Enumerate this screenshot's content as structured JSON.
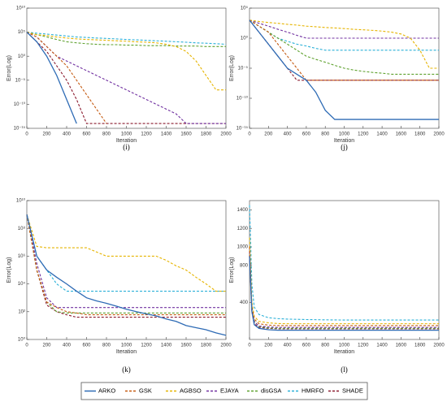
{
  "chart_data": [
    {
      "type": "line",
      "label": "(i)",
      "y_label": "Error(Log)",
      "x_label": "Iteration",
      "yscale": "log",
      "x": [
        0,
        100,
        200,
        300,
        400,
        500,
        600,
        700,
        800,
        900,
        1000,
        1100,
        1200,
        1300,
        1400,
        1500,
        1600,
        1700,
        1800,
        1900,
        2000
      ],
      "xlim": [
        0,
        2000
      ],
      "xticks": [
        0,
        200,
        400,
        600,
        800,
        1000,
        1200,
        1400,
        1600,
        1800,
        2000
      ],
      "ylim": [
        1e-15,
        10000000000.0
      ],
      "yticks": [
        {
          "value": 1e-15,
          "label": "10⁻¹⁵"
        },
        {
          "value": 1e-10,
          "label": "10⁻¹⁰"
        },
        {
          "value": 1e-05,
          "label": "10⁻⁵"
        },
        {
          "value": 1,
          "label": "10⁰"
        },
        {
          "value": 100000.0,
          "label": "10⁵"
        },
        {
          "value": 10000000000.0,
          "label": "10¹⁰"
        }
      ],
      "series": [
        {
          "name": "ARKO",
          "color": "#2e6bb5",
          "style": "solid",
          "values": [
            100000.0,
            1000.0,
            1,
            0.0001,
            1e-09,
            1e-14,
            null,
            null,
            null,
            null,
            null,
            null,
            null,
            null,
            null,
            null,
            null,
            null,
            null,
            null,
            null
          ]
        },
        {
          "name": "GSK",
          "color": "#c55a11",
          "style": "dashed",
          "values": [
            100000.0,
            10000.0,
            100.0,
            1,
            0.01,
            1e-05,
            1e-08,
            1e-11,
            1e-14,
            null,
            null,
            null,
            null,
            null,
            null,
            null,
            null,
            null,
            null,
            null,
            null
          ]
        },
        {
          "name": "AGBSO",
          "color": "#e6b400",
          "style": "dashed",
          "values": [
            100000.0,
            30000.0,
            20000.0,
            10000.0,
            6000.0,
            4000.0,
            3000.0,
            2500.0,
            2000.0,
            1600.0,
            1300.0,
            1000.0,
            800.0,
            600.0,
            300.0,
            100.0,
            10.0,
            0.1,
            0.0001,
            1e-07,
            1e-07
          ]
        },
        {
          "name": "EJAYA",
          "color": "#7030a0",
          "style": "dashed",
          "values": [
            100000.0,
            10000.0,
            100.0,
            1,
            0.1,
            0.01,
            0.001,
            0.0001,
            1e-05,
            1e-06,
            1e-07,
            1e-08,
            1e-09,
            1e-10,
            1e-11,
            1e-12,
            1e-14,
            1e-14,
            1e-14,
            1e-14,
            1e-14
          ]
        },
        {
          "name": "disGSA",
          "color": "#5ea12e",
          "style": "dashed",
          "values": [
            100000.0,
            30000.0,
            10000.0,
            3000.0,
            1000.0,
            600.0,
            400.0,
            300.0,
            250.0,
            250.0,
            200.0,
            200.0,
            160.0,
            160.0,
            160.0,
            130.0,
            130.0,
            130.0,
            100.0,
            100.0,
            100.0
          ]
        },
        {
          "name": "HMRFO",
          "color": "#2ab0d8",
          "style": "dashed",
          "values": [
            100000.0,
            60000.0,
            40000.0,
            25000.0,
            16000.0,
            10000.0,
            8000.0,
            6000.0,
            5000.0,
            4000.0,
            3000.0,
            2500.0,
            2000.0,
            1600.0,
            1300.0,
            1000.0,
            800.0,
            600.0,
            500.0,
            400.0,
            300.0
          ]
        },
        {
          "name": "SHADE",
          "color": "#8b1a2e",
          "style": "dashed",
          "values": [
            100000.0,
            1000.0,
            10.0,
            0.01,
            1e-05,
            1e-09,
            1e-14,
            1e-14,
            1e-14,
            1e-14,
            1e-14,
            1e-14,
            1e-14,
            1e-14,
            1e-14,
            1e-14,
            1e-14,
            1e-14,
            1e-14,
            1e-14,
            1e-14
          ]
        }
      ]
    },
    {
      "type": "line",
      "label": "(j)",
      "y_label": "Error(Log)",
      "x_label": "Iteration",
      "yscale": "log",
      "x": [
        0,
        100,
        200,
        300,
        400,
        500,
        600,
        700,
        800,
        900,
        1000,
        1100,
        1200,
        1300,
        1400,
        1500,
        1600,
        1700,
        1800,
        1900,
        2000
      ],
      "xlim": [
        0,
        2000
      ],
      "xticks": [
        0,
        200,
        400,
        600,
        800,
        1000,
        1200,
        1400,
        1600,
        1800,
        2000
      ],
      "ylim": [
        1e-15,
        100000.0
      ],
      "yticks": [
        {
          "value": 1e-15,
          "label": "10⁻¹⁵"
        },
        {
          "value": 1e-10,
          "label": "10⁻¹⁰"
        },
        {
          "value": 1e-05,
          "label": "10⁻⁵"
        },
        {
          "value": 1,
          "label": "10⁰"
        },
        {
          "value": 100000.0,
          "label": "10⁵"
        }
      ],
      "series": [
        {
          "name": "ARKO",
          "color": "#2e6bb5",
          "style": "solid",
          "values": [
            1000.0,
            10.0,
            0.1,
            0.001,
            1e-05,
            1e-06,
            1e-07,
            1e-09,
            1e-12,
            3e-14,
            3e-14,
            3e-14,
            3e-14,
            3e-14,
            3e-14,
            3e-14,
            3e-14,
            3e-14,
            3e-14,
            3e-14,
            3e-14
          ]
        },
        {
          "name": "GSK",
          "color": "#c55a11",
          "style": "dashed",
          "values": [
            1000.0,
            100.0,
            10.0,
            0.1,
            0.001,
            1e-05,
            1e-07,
            1e-07,
            1e-07,
            1e-07,
            1e-07,
            1e-07,
            1e-07,
            1e-07,
            1e-07,
            1e-07,
            1e-07,
            1e-07,
            1e-07,
            1e-07,
            1e-07
          ]
        },
        {
          "name": "AGBSO",
          "color": "#e6b400",
          "style": "dashed",
          "values": [
            1000.0,
            600.0,
            400.0,
            300.0,
            200.0,
            150.0,
            100.0,
            80.0,
            60.0,
            50.0,
            40.0,
            30.0,
            25.0,
            20.0,
            15.0,
            10.0,
            5,
            1,
            0.01,
            1e-05,
            1e-05
          ]
        },
        {
          "name": "EJAYA",
          "color": "#7030a0",
          "style": "dashed",
          "values": [
            1000.0,
            300.0,
            100.0,
            30.0,
            10.0,
            3,
            1,
            1,
            1,
            1,
            1,
            1,
            1,
            1,
            1,
            1,
            1,
            1,
            1,
            1,
            1
          ]
        },
        {
          "name": "disGSA",
          "color": "#5ea12e",
          "style": "dashed",
          "values": [
            1000.0,
            100.0,
            10.0,
            1,
            0.1,
            0.01,
            0.001,
            0.0003,
            0.0001,
            3e-05,
            1e-05,
            5e-06,
            3e-06,
            2e-06,
            1.5e-06,
            1e-06,
            1e-06,
            1e-06,
            1e-06,
            1e-06,
            1e-06
          ]
        },
        {
          "name": "HMRFO",
          "color": "#2ab0d8",
          "style": "dashed",
          "values": [
            1000.0,
            100.0,
            10.0,
            1,
            0.3,
            0.1,
            0.05,
            0.02,
            0.01,
            0.01,
            0.01,
            0.01,
            0.01,
            0.01,
            0.01,
            0.01,
            0.01,
            0.01,
            0.01,
            0.01,
            0.01
          ]
        },
        {
          "name": "SHADE",
          "color": "#8b1a2e",
          "style": "dashed",
          "values": [
            1000.0,
            10.0,
            0.1,
            0.001,
            1e-05,
            1e-07,
            1e-07,
            1e-07,
            1e-07,
            1e-07,
            1e-07,
            1e-07,
            1e-07,
            1e-07,
            1e-07,
            1e-07,
            1e-07,
            1e-07,
            1e-07,
            1e-07,
            1e-07
          ]
        }
      ]
    },
    {
      "type": "line",
      "label": "(k)",
      "y_label": "Error(Log)",
      "x_label": "Iteration",
      "yscale": "log",
      "x": [
        0,
        100,
        200,
        300,
        400,
        500,
        600,
        700,
        800,
        900,
        1000,
        1100,
        1200,
        1300,
        1400,
        1500,
        1600,
        1700,
        1800,
        1900,
        2000
      ],
      "xlim": [
        0,
        2000
      ],
      "xticks": [
        0,
        200,
        400,
        600,
        800,
        1000,
        1200,
        1400,
        1600,
        1800,
        2000
      ],
      "ylim": [
        1,
        10000000000.0
      ],
      "yticks": [
        {
          "value": 1,
          "label": "10⁰"
        },
        {
          "value": 100.0,
          "label": "10²"
        },
        {
          "value": 10000.0,
          "label": "10⁴"
        },
        {
          "value": 1000000.0,
          "label": "10⁶"
        },
        {
          "value": 100000000.0,
          "label": "10⁸"
        },
        {
          "value": 10000000000.0,
          "label": "10¹⁰"
        }
      ],
      "series": [
        {
          "name": "ARKO",
          "color": "#2e6bb5",
          "style": "solid",
          "values": [
            1000000000.0,
            1000000.0,
            100000.0,
            30000.0,
            10000.0,
            3000.0,
            1000.0,
            600.0,
            400.0,
            250.0,
            150.0,
            100.0,
            70.0,
            50.0,
            30.0,
            20.0,
            10.0,
            7,
            5,
            3,
            2
          ]
        },
        {
          "name": "GSK",
          "color": "#c55a11",
          "style": "dashed",
          "values": [
            1000000000.0,
            100000.0,
            500.0,
            200.0,
            100.0,
            80.0,
            60.0,
            60.0,
            60.0,
            60.0,
            60.0,
            60.0,
            60.0,
            60.0,
            60.0,
            60.0,
            60.0,
            60.0,
            60.0,
            60.0,
            60.0
          ]
        },
        {
          "name": "AGBSO",
          "color": "#e6b400",
          "style": "dashed",
          "values": [
            1000000000.0,
            5000000.0,
            4000000.0,
            4000000.0,
            4000000.0,
            4000000.0,
            4000000.0,
            2000000.0,
            1000000.0,
            1000000.0,
            1000000.0,
            1000000.0,
            1000000.0,
            1000000.0,
            500000.0,
            200000.0,
            100000.0,
            30000.0,
            10000.0,
            3000.0,
            3000.0
          ]
        },
        {
          "name": "EJAYA",
          "color": "#7030a0",
          "style": "dashed",
          "values": [
            1000000000.0,
            300000.0,
            1000.0,
            200.0,
            200.0,
            200.0,
            200.0,
            200.0,
            200.0,
            200.0,
            200.0,
            200.0,
            200.0,
            200.0,
            200.0,
            200.0,
            200.0,
            200.0,
            200.0,
            200.0,
            200.0
          ]
        },
        {
          "name": "disGSA",
          "color": "#5ea12e",
          "style": "dashed",
          "values": [
            1000000000.0,
            100000.0,
            500.0,
            100.0,
            80.0,
            80.0,
            80.0,
            80.0,
            80.0,
            80.0,
            80.0,
            80.0,
            80.0,
            80.0,
            80.0,
            80.0,
            80.0,
            80.0,
            80.0,
            80.0,
            80.0
          ]
        },
        {
          "name": "HMRFO",
          "color": "#2ab0d8",
          "style": "dashed",
          "values": [
            1000000000.0,
            1000000.0,
            100000.0,
            10000.0,
            3000.0,
            3000.0,
            3000.0,
            3000.0,
            3000.0,
            3000.0,
            3000.0,
            3000.0,
            3000.0,
            3000.0,
            3000.0,
            3000.0,
            3000.0,
            3000.0,
            3000.0,
            3000.0,
            3000.0
          ]
        },
        {
          "name": "SHADE",
          "color": "#8b1a2e",
          "style": "dashed",
          "values": [
            1000000000.0,
            100000.0,
            300.0,
            100.0,
            60.0,
            40.0,
            40.0,
            40.0,
            40.0,
            40.0,
            40.0,
            40.0,
            40.0,
            40.0,
            40.0,
            40.0,
            40.0,
            40.0,
            40.0,
            40.0,
            40.0
          ]
        }
      ]
    },
    {
      "type": "line",
      "label": "(l)",
      "y_label": "Error(Log)",
      "x_label": "Iteration",
      "yscale": "linear",
      "x": [
        0,
        25,
        50,
        100,
        200,
        300,
        400,
        600,
        800,
        1000,
        1200,
        1400,
        1600,
        1800,
        2000
      ],
      "xlim": [
        0,
        2000
      ],
      "xticks": [
        0,
        200,
        400,
        600,
        800,
        1000,
        1200,
        1400,
        1600,
        1800,
        2000
      ],
      "ylim": [
        0,
        1500
      ],
      "yticks": [
        400,
        800,
        1000,
        1200,
        1400
      ],
      "series": [
        {
          "name": "ARKO",
          "color": "#2e6bb5",
          "style": "solid",
          "values": [
            900,
            300,
            160,
            120,
            105,
            100,
            100,
            100,
            100,
            100,
            100,
            100,
            100,
            100,
            100
          ]
        },
        {
          "name": "GSK",
          "color": "#c55a11",
          "style": "dashed",
          "values": [
            1000,
            350,
            220,
            170,
            155,
            150,
            150,
            150,
            150,
            150,
            150,
            150,
            150,
            150,
            150
          ]
        },
        {
          "name": "AGBSO",
          "color": "#e6b400",
          "style": "dashed",
          "values": [
            1100,
            400,
            250,
            195,
            180,
            172,
            170,
            170,
            170,
            170,
            170,
            170,
            170,
            170,
            170
          ]
        },
        {
          "name": "EJAYA",
          "color": "#7030a0",
          "style": "dashed",
          "values": [
            950,
            320,
            190,
            145,
            135,
            130,
            130,
            130,
            130,
            130,
            130,
            130,
            130,
            130,
            130
          ]
        },
        {
          "name": "disGSA",
          "color": "#5ea12e",
          "style": "dashed",
          "values": [
            1000,
            330,
            200,
            140,
            125,
            120,
            120,
            120,
            120,
            120,
            120,
            120,
            120,
            120,
            120
          ]
        },
        {
          "name": "HMRFO",
          "color": "#2ab0d8",
          "style": "dashed",
          "values": [
            1450,
            600,
            350,
            270,
            235,
            225,
            220,
            215,
            212,
            210,
            210,
            210,
            210,
            210,
            210
          ]
        },
        {
          "name": "SHADE",
          "color": "#8b1a2e",
          "style": "dashed",
          "values": [
            900,
            300,
            170,
            130,
            120,
            115,
            115,
            115,
            115,
            115,
            115,
            115,
            115,
            115,
            115
          ]
        }
      ]
    }
  ]
}
